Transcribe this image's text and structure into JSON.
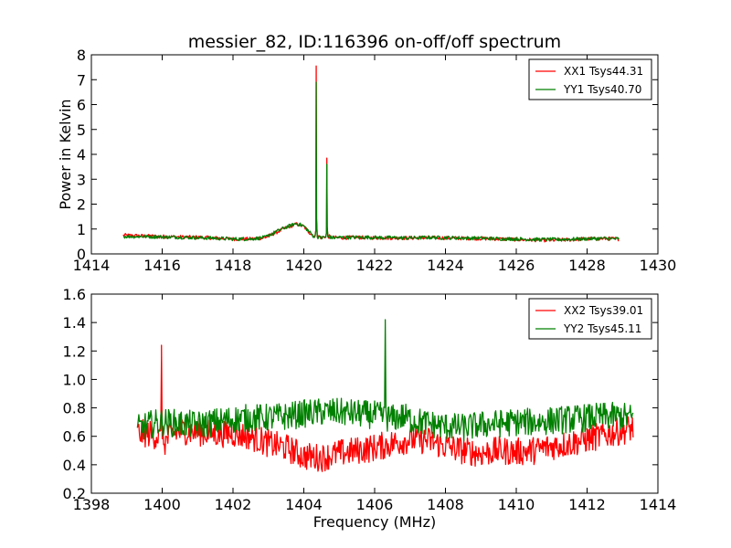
{
  "figure": {
    "title": "messier_82, ID:116396 on-off/off spectrum"
  },
  "colors": {
    "red": "#ff0000",
    "green": "#008000",
    "axes": "#000000",
    "background": "#ffffff"
  },
  "chart_data": [
    {
      "type": "line",
      "title": "messier_82, ID:116396 on-off/off spectrum",
      "xlabel": "",
      "ylabel": "Power in Kelvin",
      "xlim": [
        1414,
        1430
      ],
      "ylim": [
        0,
        8
      ],
      "xticks": [
        "1414",
        "1416",
        "1418",
        "1420",
        "1422",
        "1424",
        "1426",
        "1428",
        "1430"
      ],
      "yticks": [
        "0",
        "1",
        "2",
        "3",
        "4",
        "5",
        "6",
        "7",
        "8"
      ],
      "legend_position": "top-right",
      "grid": false,
      "x_range": [
        1414.9,
        1428.9
      ],
      "series": [
        {
          "name": "XX1 Tsys44.31",
          "color": "#ff0000",
          "x": [
            1414.9,
            1415.5,
            1416.0,
            1416.5,
            1417.0,
            1417.5,
            1418.0,
            1418.5,
            1418.9,
            1419.2,
            1419.5,
            1419.8,
            1420.0,
            1420.2,
            1420.3,
            1420.35,
            1420.42,
            1420.5,
            1420.6,
            1420.65,
            1420.72,
            1420.8,
            1421.0,
            1421.5,
            1422.0,
            1422.5,
            1423.0,
            1423.5,
            1424.0,
            1424.5,
            1425.0,
            1425.5,
            1426.0,
            1426.5,
            1427.0,
            1427.5,
            1428.0,
            1428.5,
            1428.9
          ],
          "y": [
            0.75,
            0.72,
            0.7,
            0.68,
            0.67,
            0.64,
            0.6,
            0.6,
            0.65,
            0.85,
            1.05,
            1.2,
            1.1,
            0.8,
            0.7,
            7.55,
            0.7,
            0.65,
            0.7,
            3.85,
            0.7,
            0.66,
            0.65,
            0.66,
            0.65,
            0.64,
            0.64,
            0.65,
            0.64,
            0.63,
            0.62,
            0.6,
            0.58,
            0.56,
            0.55,
            0.57,
            0.6,
            0.62,
            0.6
          ]
        },
        {
          "name": "YY1 Tsys40.70",
          "color": "#008000",
          "x": [
            1414.9,
            1415.5,
            1416.0,
            1416.5,
            1417.0,
            1417.5,
            1418.0,
            1418.5,
            1418.9,
            1419.2,
            1419.5,
            1419.8,
            1420.0,
            1420.2,
            1420.3,
            1420.35,
            1420.42,
            1420.5,
            1420.6,
            1420.65,
            1420.72,
            1420.8,
            1421.0,
            1421.5,
            1422.0,
            1422.5,
            1423.0,
            1423.5,
            1424.0,
            1424.5,
            1425.0,
            1425.5,
            1426.0,
            1426.5,
            1427.0,
            1427.5,
            1428.0,
            1428.5,
            1428.9
          ],
          "y": [
            0.7,
            0.7,
            0.68,
            0.67,
            0.65,
            0.63,
            0.6,
            0.6,
            0.66,
            0.88,
            1.08,
            1.22,
            1.12,
            0.82,
            0.68,
            6.9,
            0.68,
            0.64,
            0.68,
            3.6,
            0.68,
            0.65,
            0.66,
            0.67,
            0.66,
            0.65,
            0.64,
            0.66,
            0.65,
            0.64,
            0.63,
            0.61,
            0.6,
            0.58,
            0.58,
            0.59,
            0.61,
            0.62,
            0.6
          ]
        }
      ]
    },
    {
      "type": "line",
      "title": "",
      "xlabel": "Frequency (MHz)",
      "ylabel": "",
      "xlim": [
        1398,
        1414
      ],
      "ylim": [
        0.2,
        1.6
      ],
      "xticks": [
        "1398",
        "1400",
        "1402",
        "1404",
        "1406",
        "1408",
        "1410",
        "1412",
        "1414"
      ],
      "yticks": [
        "0.2",
        "0.4",
        "0.6",
        "0.8",
        "1.0",
        "1.2",
        "1.4",
        "1.6"
      ],
      "legend_position": "top-right",
      "grid": false,
      "x_range": [
        1399.3,
        1413.3
      ],
      "series": [
        {
          "name": "XX2 Tsys39.01",
          "color": "#ff0000",
          "x": [
            1399.3,
            1399.6,
            1399.9,
            1399.98,
            1400.05,
            1400.3,
            1400.6,
            1401.0,
            1401.5,
            1402.0,
            1402.5,
            1403.0,
            1403.5,
            1404.0,
            1404.5,
            1405.0,
            1405.5,
            1406.0,
            1406.5,
            1407.0,
            1407.5,
            1408.0,
            1408.5,
            1409.0,
            1409.5,
            1410.0,
            1410.5,
            1411.0,
            1411.5,
            1412.0,
            1412.5,
            1413.0,
            1413.3
          ],
          "y": [
            0.62,
            0.62,
            0.6,
            1.24,
            0.55,
            0.62,
            0.64,
            0.63,
            0.62,
            0.62,
            0.6,
            0.55,
            0.52,
            0.46,
            0.45,
            0.48,
            0.5,
            0.52,
            0.55,
            0.58,
            0.57,
            0.53,
            0.5,
            0.48,
            0.5,
            0.49,
            0.5,
            0.53,
            0.55,
            0.58,
            0.61,
            0.64,
            0.66
          ]
        },
        {
          "name": "YY2 Tsys45.11",
          "color": "#008000",
          "x": [
            1399.3,
            1399.6,
            1400.0,
            1400.5,
            1401.0,
            1401.5,
            1402.0,
            1402.5,
            1403.0,
            1403.5,
            1404.0,
            1404.5,
            1405.0,
            1405.5,
            1406.0,
            1406.25,
            1406.3,
            1406.4,
            1406.8,
            1407.0,
            1407.5,
            1408.0,
            1408.5,
            1409.0,
            1409.5,
            1410.0,
            1410.5,
            1411.0,
            1411.5,
            1412.0,
            1412.5,
            1413.0,
            1413.3
          ],
          "y": [
            0.65,
            0.68,
            0.7,
            0.69,
            0.68,
            0.7,
            0.72,
            0.73,
            0.73,
            0.74,
            0.76,
            0.77,
            0.77,
            0.76,
            0.75,
            0.74,
            1.42,
            0.72,
            0.74,
            0.72,
            0.69,
            0.67,
            0.66,
            0.68,
            0.69,
            0.7,
            0.7,
            0.71,
            0.72,
            0.73,
            0.74,
            0.74,
            0.73
          ]
        }
      ]
    }
  ]
}
